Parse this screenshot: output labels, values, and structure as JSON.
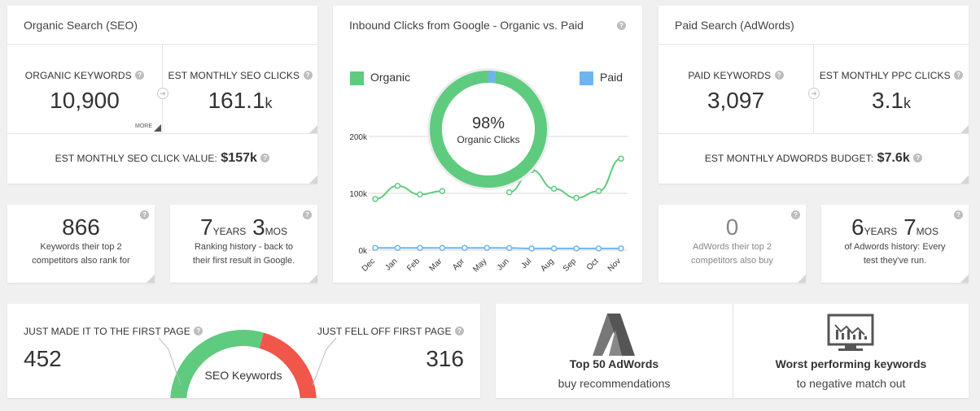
{
  "organic": {
    "title": "Organic Search (SEO)",
    "keywords_label": "ORGANIC KEYWORDS",
    "keywords_value": "10,900",
    "more_label": "MORE",
    "clicks_label": "EST MONTHLY SEO CLICKS",
    "clicks_value": "161.1",
    "clicks_unit": "k",
    "click_value_label": "EST MONTHLY SEO CLICK VALUE:",
    "click_value": "$157k"
  },
  "inbound": {
    "title": "Inbound Clicks from Google - Organic vs. Paid",
    "legend_organic": "Organic",
    "legend_paid": "Paid",
    "donut_percent": "98%",
    "donut_label": "Organic Clicks"
  },
  "paid": {
    "title": "Paid Search (AdWords)",
    "keywords_label": "PAID KEYWORDS",
    "keywords_value": "3,097",
    "clicks_label": "EST MONTHLY PPC CLICKS",
    "clicks_value": "3.1",
    "clicks_unit": "k",
    "budget_label": "EST MONTHLY ADWORDS BUDGET:",
    "budget_value": "$7.6k"
  },
  "small": {
    "competitors_value": "866",
    "competitors_desc1": "Keywords their top 2",
    "competitors_desc2": "competitors also rank for",
    "history_years": "7",
    "history_years_unit": "YEARS",
    "history_mos": "3",
    "history_mos_unit": "MOS",
    "history_desc1": "Ranking history - back to",
    "history_desc2": "their first result in Google.",
    "ad_comp_value": "0",
    "ad_comp_desc1": "AdWords their top 2",
    "ad_comp_desc2": "competitors also buy",
    "ad_hist_years": "6",
    "ad_hist_years_unit": "YEARS",
    "ad_hist_mos": "7",
    "ad_hist_mos_unit": "MOS",
    "ad_hist_desc1": "of Adwords history: Every",
    "ad_hist_desc2": "test they've run."
  },
  "movers": {
    "made_label": "JUST MADE IT TO THE FIRST PAGE",
    "made_value": "452",
    "fell_label": "JUST FELL OFF FIRST PAGE",
    "fell_value": "316",
    "gauge_label": "SEO Keywords",
    "gauge_made_fraction": 0.59
  },
  "actions": {
    "adwords_title": "Top 50 AdWords",
    "adwords_sub": "buy recommendations",
    "worst_title": "Worst performing keywords",
    "worst_sub": "to negative match out"
  },
  "colors": {
    "organic": "#5fcb7f",
    "paid": "#6eb5ef",
    "fell": "#f0564a"
  },
  "chart_data": {
    "type": "line",
    "x": [
      "Dec",
      "Jan",
      "Feb",
      "Mar",
      "Apr",
      "May",
      "Jun",
      "Jul",
      "Aug",
      "Sep",
      "Oct",
      "Nov"
    ],
    "yticks": [
      "0k",
      "100k",
      "200k"
    ],
    "ylim": [
      0,
      200000
    ],
    "series": [
      {
        "name": "Organic",
        "values": [
          90000,
          113000,
          98000,
          104000,
          null,
          null,
          102000,
          141000,
          108000,
          92000,
          104000,
          161000
        ]
      },
      {
        "name": "Paid",
        "values": [
          4000,
          4000,
          4000,
          4000,
          4000,
          4000,
          3800,
          3000,
          3000,
          3000,
          3000,
          3100
        ]
      }
    ],
    "donut": {
      "organic_fraction": 0.98,
      "paid_fraction": 0.02
    }
  }
}
